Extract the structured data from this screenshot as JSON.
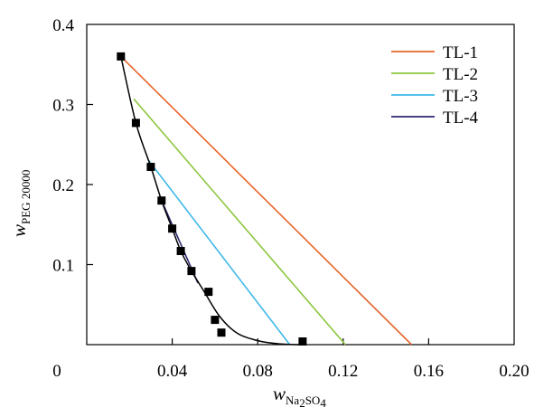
{
  "chart_data": {
    "type": "line",
    "title": "",
    "xlabel": {
      "main": "w",
      "sub": "Na",
      "sub_tail": "SO",
      "sub_n1": "2",
      "sub_n2": "4"
    },
    "ylabel": {
      "main": "w",
      "sub": "PEG 20000"
    },
    "xlim": [
      0,
      0.2
    ],
    "ylim": [
      0,
      0.4
    ],
    "x_ticks": [
      {
        "value": 0,
        "label": "0"
      },
      {
        "value": 0.04,
        "label": "0.04"
      },
      {
        "value": 0.08,
        "label": "0.08"
      },
      {
        "value": 0.12,
        "label": "0.12"
      },
      {
        "value": 0.16,
        "label": "0.16"
      },
      {
        "value": 0.2,
        "label": "0.20"
      }
    ],
    "y_ticks": [
      {
        "value": 0.1,
        "label": "0.1"
      },
      {
        "value": 0.2,
        "label": "0.2"
      },
      {
        "value": 0.3,
        "label": "0.3"
      },
      {
        "value": 0.4,
        "label": "0.4"
      }
    ],
    "grid": false,
    "legend_position": "top-right",
    "binodal_points": [
      [
        0.016,
        0.36
      ],
      [
        0.023,
        0.277
      ],
      [
        0.03,
        0.222
      ],
      [
        0.035,
        0.18
      ],
      [
        0.04,
        0.145
      ],
      [
        0.044,
        0.117
      ],
      [
        0.049,
        0.092
      ],
      [
        0.057,
        0.066
      ],
      [
        0.06,
        0.031
      ],
      [
        0.063,
        0.015
      ],
      [
        0.101,
        0.004
      ]
    ],
    "binodal_curve": [
      [
        0.016,
        0.36
      ],
      [
        0.023,
        0.277
      ],
      [
        0.03,
        0.222
      ],
      [
        0.035,
        0.18
      ],
      [
        0.04,
        0.145
      ],
      [
        0.044,
        0.117
      ],
      [
        0.049,
        0.092
      ],
      [
        0.055,
        0.066
      ],
      [
        0.062,
        0.036
      ],
      [
        0.07,
        0.015
      ],
      [
        0.08,
        0.005
      ],
      [
        0.09,
        0.001
      ],
      [
        0.101,
        0.0
      ]
    ],
    "series": [
      {
        "name": "TL-1",
        "color": "#E8652B",
        "points": [
          [
            0.016,
            0.36
          ],
          [
            0.152,
            0.0
          ]
        ]
      },
      {
        "name": "TL-2",
        "color": "#8DC63F",
        "points": [
          [
            0.022,
            0.307
          ],
          [
            0.121,
            0.0
          ]
        ]
      },
      {
        "name": "TL-3",
        "color": "#3FB9E8",
        "points": [
          [
            0.029,
            0.23
          ],
          [
            0.095,
            0.0
          ]
        ]
      },
      {
        "name": "TL-4",
        "color": "#2E2A6E",
        "points": [
          [
            0.035,
            0.18
          ],
          [
            0.052,
            0.077
          ]
        ]
      }
    ]
  }
}
